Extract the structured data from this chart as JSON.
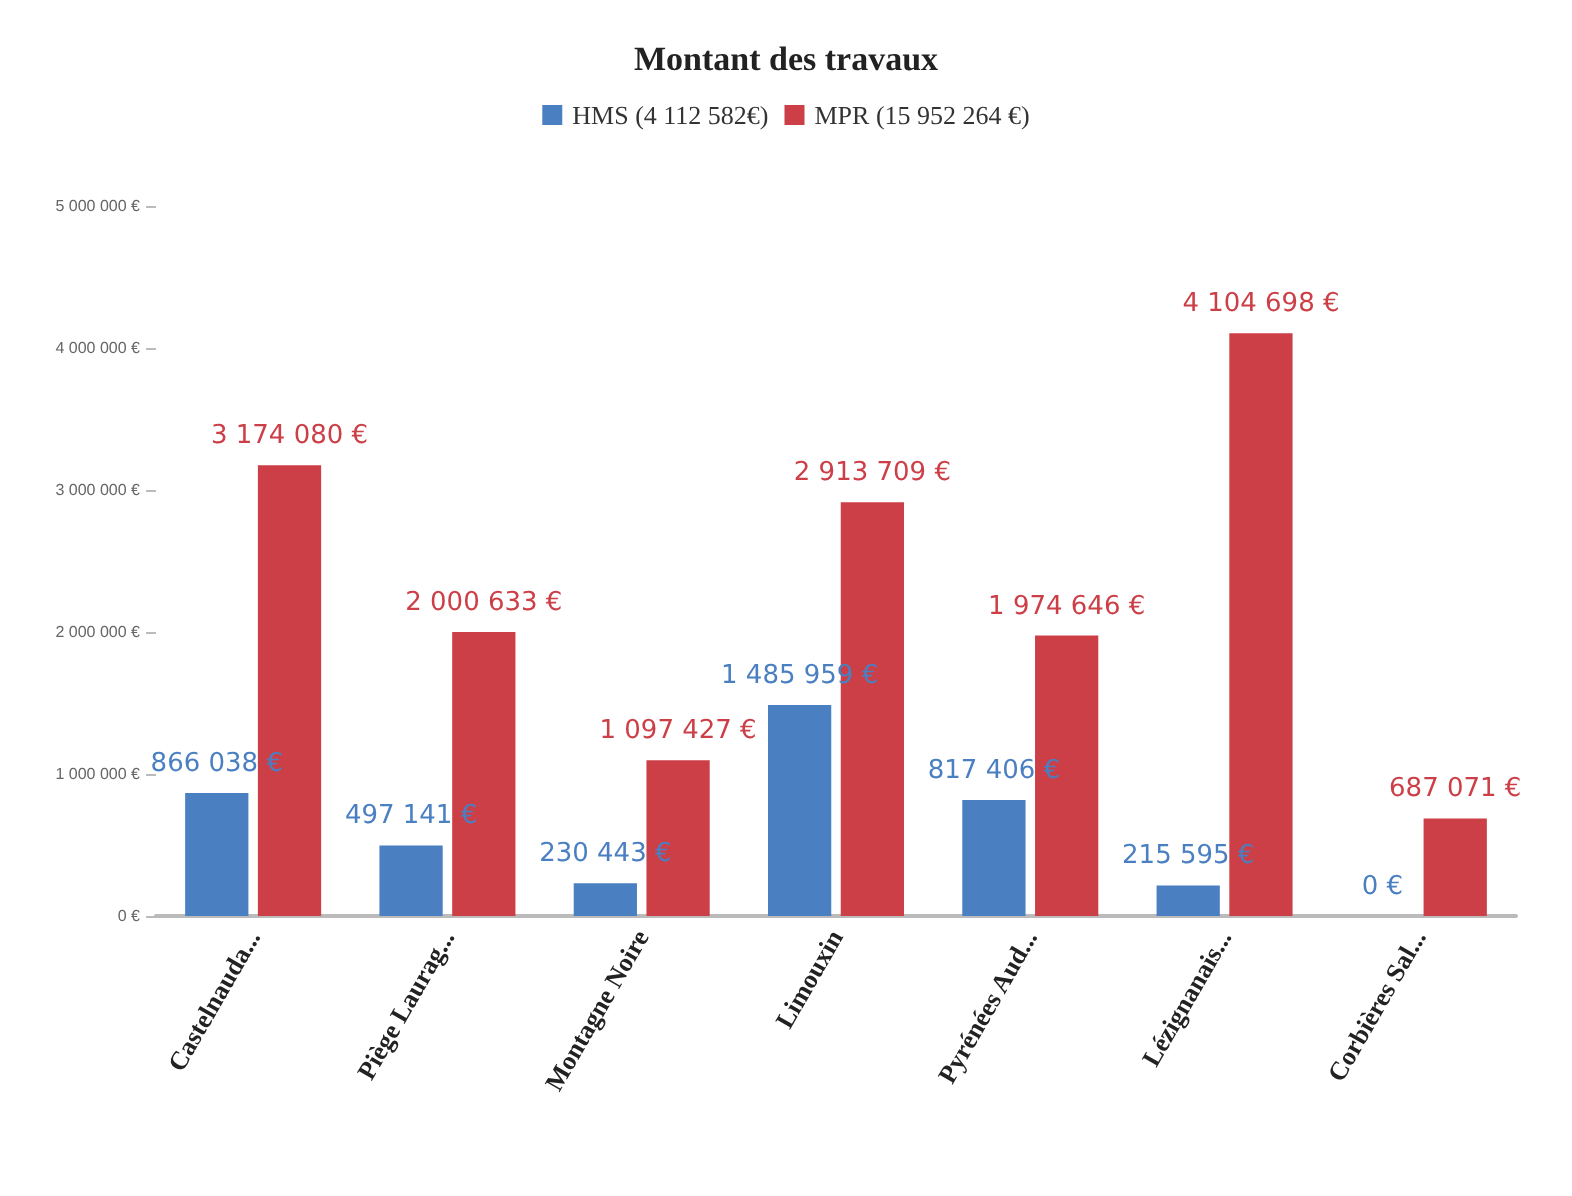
{
  "chart_data": {
    "type": "bar",
    "title": "Montant des travaux",
    "categories": [
      "Castelnauda...",
      "Piège Laurag...",
      "Montagne Noire",
      "Limouxin",
      "Pyrénées Aud...",
      "Lézignanais...",
      "Corbières Sal..."
    ],
    "series": [
      {
        "name": "HMS (4 112 582€)",
        "color": "#4a7fc1",
        "values": [
          866038,
          497141,
          230443,
          1485959,
          817406,
          215595,
          0
        ],
        "value_labels": [
          "866 038 €",
          "497 141 €",
          "230 443 €",
          "1 485 959 €",
          "817 406 €",
          "215 595 €",
          "0 €"
        ]
      },
      {
        "name": "MPR (15 952 264 €)",
        "color": "#cc3f47",
        "values": [
          3174080,
          2000633,
          1097427,
          2913709,
          1974646,
          4104698,
          687071
        ],
        "value_labels": [
          "3 174 080 €",
          "2 000 633 €",
          "1 097 427 €",
          "2 913 709 €",
          "1 974 646 €",
          "4 104 698 €",
          "687 071 €"
        ]
      }
    ],
    "ylim": [
      0,
      5000000
    ],
    "yticks": [
      {
        "value": 0,
        "label": "0 €"
      },
      {
        "value": 1000000,
        "label": "1 000 000 €"
      },
      {
        "value": 2000000,
        "label": "2 000 000 €"
      },
      {
        "value": 3000000,
        "label": "3 000 000 €"
      },
      {
        "value": 4000000,
        "label": "4 000 000 €"
      },
      {
        "value": 5000000,
        "label": "5 000 000 €"
      }
    ],
    "grid": false,
    "legend": "top"
  }
}
